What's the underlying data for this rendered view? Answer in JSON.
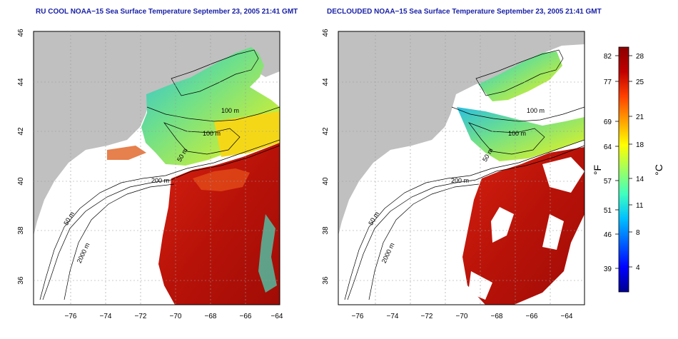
{
  "panels": [
    {
      "title": "RU COOL NOAA−15 Sea Surface Temperature September 23, 2005 21:41 GMT",
      "x_ticks": [
        "−76",
        "−74",
        "−72",
        "−70",
        "−68",
        "−66",
        "−64"
      ],
      "y_ticks": [
        "36",
        "38",
        "40",
        "42",
        "44",
        "46"
      ],
      "contour_labels": [
        "100 m",
        "100 m",
        "50 m",
        "200 m",
        "50 m",
        "2000 m"
      ]
    },
    {
      "title": "DECLOUDED NOAA−15 Sea Surface Temperature September 23, 2005 21:41 GMT",
      "x_ticks": [
        "−76",
        "−74",
        "−72",
        "−70",
        "−68",
        "−66",
        "−64"
      ],
      "y_ticks": [
        "36",
        "38",
        "40",
        "42",
        "44",
        "46"
      ],
      "contour_labels": [
        "100 m",
        "100 m",
        "50 m",
        "200 m",
        "50 m",
        "2000 m"
      ]
    }
  ],
  "colorbar": {
    "fahrenheit_label": "°F",
    "celsius_label": "°C",
    "fahrenheit_ticks": [
      "82",
      "77",
      "69",
      "64",
      "57",
      "51",
      "46",
      "39"
    ],
    "celsius_ticks": [
      "28",
      "25",
      "21",
      "18",
      "14",
      "11",
      "8",
      "4"
    ],
    "colors": [
      "#00008f",
      "#0000ff",
      "#0060ff",
      "#00c0ff",
      "#40ffbf",
      "#a0ff60",
      "#ffff00",
      "#ffa000",
      "#ff4000",
      "#c00000",
      "#8b0000"
    ]
  },
  "colors": {
    "land": "#c0c0c0",
    "title": "#1a22a6",
    "warm_water": "#c81808",
    "no_data": "#ffffff"
  }
}
